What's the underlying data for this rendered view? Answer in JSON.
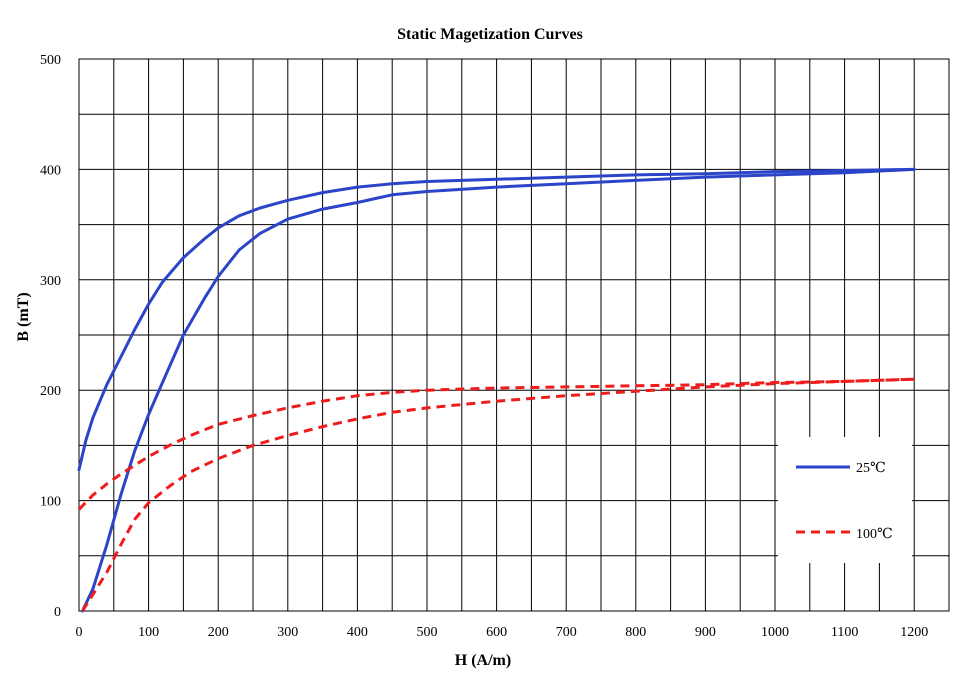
{
  "chart_data": {
    "type": "line",
    "title": "Static Magetization Curves",
    "xlabel": "H (A/m)",
    "ylabel": "B (mT)",
    "xlim": [
      0,
      1200
    ],
    "ylim": [
      0,
      500
    ],
    "x_ticks": [
      "0",
      "100",
      "200",
      "300",
      "400",
      "500",
      "600",
      "700",
      "800",
      "900",
      "1000",
      "1100",
      "1200"
    ],
    "y_ticks": [
      "0",
      "100",
      "200",
      "300",
      "400",
      "500"
    ],
    "grid": true,
    "legend_position": "right",
    "series": [
      {
        "name": "25℃",
        "color": "#2b44c8",
        "style": "solid",
        "branches": [
          [
            [
              0,
              128
            ],
            [
              10,
              155
            ],
            [
              20,
              175
            ],
            [
              40,
              205
            ],
            [
              60,
              230
            ],
            [
              80,
              255
            ],
            [
              100,
              278
            ],
            [
              120,
              298
            ],
            [
              150,
              320
            ],
            [
              180,
              337
            ],
            [
              200,
              347
            ],
            [
              230,
              358
            ],
            [
              260,
              365
            ],
            [
              300,
              372
            ],
            [
              350,
              379
            ],
            [
              400,
              384
            ],
            [
              450,
              387
            ],
            [
              500,
              389
            ],
            [
              600,
              391
            ],
            [
              700,
              393
            ],
            [
              800,
              395
            ],
            [
              900,
              396
            ],
            [
              1000,
              398
            ],
            [
              1100,
              399
            ],
            [
              1200,
              400
            ]
          ],
          [
            [
              5,
              0
            ],
            [
              20,
              20
            ],
            [
              40,
              60
            ],
            [
              60,
              105
            ],
            [
              80,
              145
            ],
            [
              100,
              178
            ],
            [
              120,
              207
            ],
            [
              150,
              250
            ],
            [
              180,
              283
            ],
            [
              200,
              303
            ],
            [
              230,
              327
            ],
            [
              260,
              342
            ],
            [
              300,
              355
            ],
            [
              350,
              364
            ],
            [
              400,
              370
            ],
            [
              450,
              377
            ],
            [
              500,
              380
            ],
            [
              600,
              384
            ],
            [
              700,
              387
            ],
            [
              800,
              390
            ],
            [
              900,
              393
            ],
            [
              1000,
              395
            ],
            [
              1100,
              397
            ],
            [
              1200,
              400
            ]
          ]
        ]
      },
      {
        "name": "100℃",
        "color": "#ee1c1c",
        "style": "dashed",
        "branches": [
          [
            [
              0,
              92
            ],
            [
              20,
              105
            ],
            [
              40,
              115
            ],
            [
              60,
              124
            ],
            [
              80,
              132
            ],
            [
              100,
              140
            ],
            [
              130,
              150
            ],
            [
              160,
              159
            ],
            [
              200,
              169
            ],
            [
              250,
              177
            ],
            [
              300,
              184
            ],
            [
              350,
              190
            ],
            [
              400,
              195
            ],
            [
              450,
              198
            ],
            [
              500,
              200
            ],
            [
              600,
              202
            ],
            [
              700,
              203
            ],
            [
              800,
              204
            ],
            [
              900,
              205
            ],
            [
              1000,
              207
            ],
            [
              1100,
              208
            ],
            [
              1200,
              210
            ]
          ],
          [
            [
              5,
              0
            ],
            [
              20,
              15
            ],
            [
              40,
              35
            ],
            [
              60,
              60
            ],
            [
              80,
              83
            ],
            [
              100,
              98
            ],
            [
              130,
              113
            ],
            [
              160,
              126
            ],
            [
              200,
              138
            ],
            [
              250,
              150
            ],
            [
              300,
              159
            ],
            [
              350,
              167
            ],
            [
              400,
              174
            ],
            [
              450,
              180
            ],
            [
              500,
              184
            ],
            [
              600,
              190
            ],
            [
              700,
              195
            ],
            [
              800,
              199
            ],
            [
              900,
              203
            ],
            [
              1000,
              206
            ],
            [
              1100,
              208
            ],
            [
              1200,
              210
            ]
          ]
        ]
      }
    ]
  }
}
